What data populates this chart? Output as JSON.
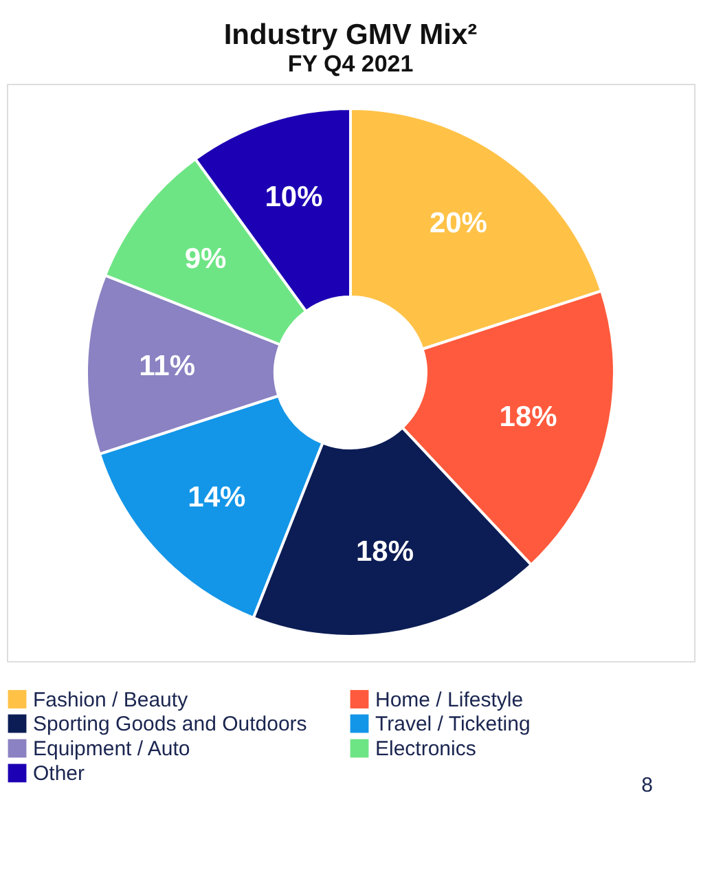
{
  "chart_data": {
    "type": "donut",
    "title": "Industry GMV Mix²",
    "subtitle": "FY Q4 2021",
    "categories": [
      "Fashion / Beauty",
      "Home / Lifestyle",
      "Sporting Goods and Outdoors",
      "Travel / Ticketing",
      "Equipment / Auto",
      "Electronics",
      "Other"
    ],
    "values": [
      20,
      18,
      18,
      14,
      11,
      9,
      10
    ],
    "colors": [
      "#ffc247",
      "#ff5a3d",
      "#0c1d55",
      "#1396e8",
      "#8a82c2",
      "#6ee585",
      "#1c00b3"
    ],
    "value_labels": [
      "20%",
      "18%",
      "18%",
      "14%",
      "11%",
      "9%",
      "10%"
    ],
    "legend": "bottom",
    "annotations": [
      "8"
    ]
  }
}
